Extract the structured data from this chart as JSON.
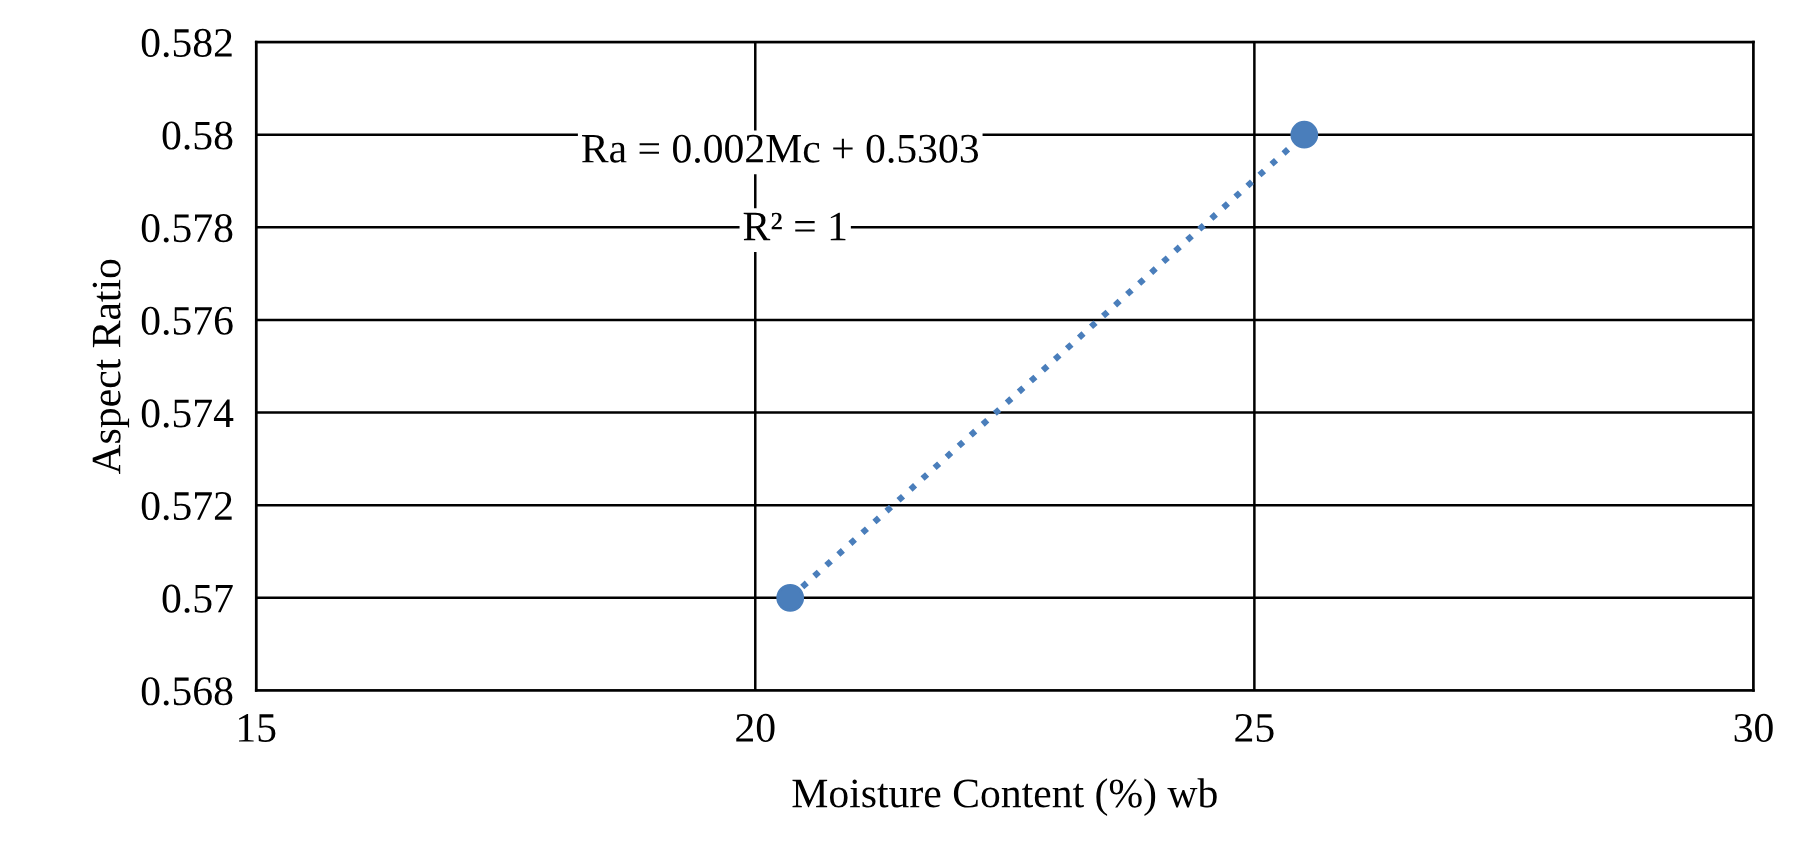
{
  "chart_data": {
    "type": "scatter",
    "xlabel": "Moisture Content (%) wb",
    "ylabel": "Aspect Ratio",
    "x": [
      20.35,
      25.5
    ],
    "series": [
      {
        "color": "#4a7ebb",
        "values": [
          0.57,
          0.58
        ],
        "marker": "circle"
      },
      {
        "type": "line",
        "color": "#4a7ebb",
        "values": [
          0.57,
          0.58
        ],
        "line_style": "dotted",
        "marker": "none"
      }
    ],
    "annotations": [
      "Ra = 0.002Mc + 0.5303",
      "R² = 1"
    ],
    "xlim": [
      15,
      30
    ],
    "xticks": [
      15,
      20,
      25,
      30
    ],
    "ylim": [
      0.568,
      0.582
    ],
    "yticks": [
      0.568,
      0.57,
      0.572,
      0.574,
      0.576,
      0.578,
      0.58,
      0.582
    ],
    "grid": true
  }
}
